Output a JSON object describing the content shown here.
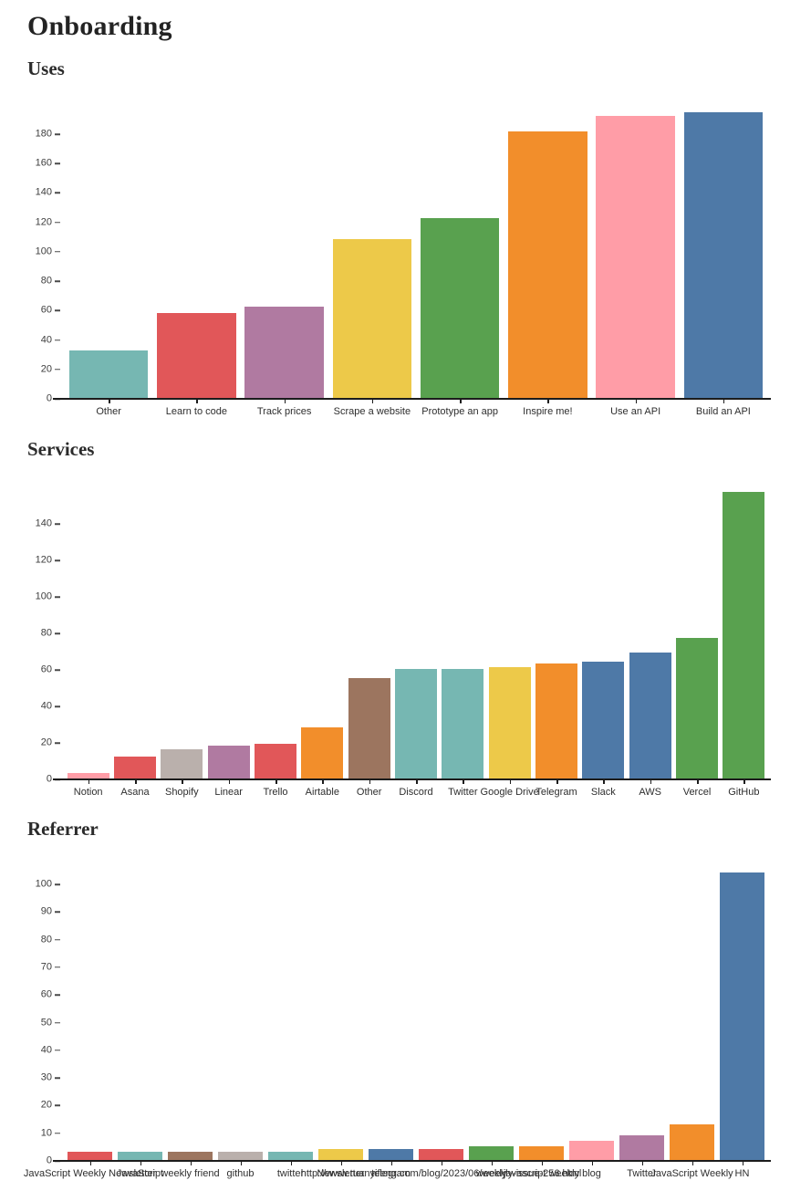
{
  "page": {
    "title": "Onboarding"
  },
  "palette": {
    "blue": "#4E79A7",
    "orange": "#F28E2B",
    "red": "#E15759",
    "teal": "#76B7B2",
    "green": "#59A14F",
    "yellow": "#EDC949",
    "purple": "#B07AA1",
    "pink": "#FF9DA7",
    "brown": "#9C755F",
    "gray": "#BAB0AC"
  },
  "chart_data": [
    {
      "type": "bar",
      "title": "Uses",
      "categories": [
        "Other",
        "Learn to code",
        "Track prices",
        "Scrape a website",
        "Prototype an app",
        "Inspire me!",
        "Use an API",
        "Build an API"
      ],
      "values": [
        32,
        58,
        62,
        108,
        122,
        181,
        192,
        194
      ],
      "colors": [
        "teal",
        "red",
        "purple",
        "yellow",
        "green",
        "orange",
        "pink",
        "blue"
      ],
      "y_ticks": [
        0,
        20,
        40,
        60,
        80,
        100,
        120,
        140,
        160,
        180
      ],
      "ylim": [
        0,
        195
      ],
      "xlabel": "",
      "ylabel": "",
      "grid": false,
      "legend": "none"
    },
    {
      "type": "bar",
      "title": "Services",
      "categories": [
        "Notion",
        "Asana",
        "Shopify",
        "Linear",
        "Trello",
        "Airtable",
        "Other",
        "Discord",
        "Twitter",
        "Google Drive",
        "Telegram",
        "Slack",
        "AWS",
        "Vercel",
        "GitHub"
      ],
      "values": [
        3,
        12,
        16,
        18,
        19,
        28,
        55,
        60,
        60,
        61,
        63,
        64,
        69,
        77,
        157
      ],
      "colors": [
        "pink",
        "red",
        "gray",
        "purple",
        "red",
        "orange",
        "brown",
        "teal",
        "teal",
        "yellow",
        "orange",
        "blue",
        "blue",
        "green",
        "green"
      ],
      "y_ticks": [
        0,
        20,
        40,
        60,
        80,
        100,
        120,
        140
      ],
      "ylim": [
        0,
        160
      ],
      "xlabel": "",
      "ylabel": "",
      "grid": false,
      "legend": "none"
    },
    {
      "type": "bar",
      "title": "Referrer",
      "categories": [
        "JavaScript Weekly Newsletter",
        "JavaScript",
        "weekly friend",
        "github",
        "twitter",
        "Newsletter",
        "telegram",
        "http://www.ruanyifeng.com/blog/2023/06/weekly-issue-256.html",
        "weekly",
        "javascript weekly",
        "blog",
        "Twitter",
        "JavaScript Weekly",
        "HN"
      ],
      "values": [
        3,
        3,
        3,
        3,
        3,
        4,
        4,
        4,
        5,
        5,
        7,
        9,
        13,
        104
      ],
      "colors": [
        "red",
        "teal",
        "brown",
        "gray",
        "teal",
        "yellow",
        "blue",
        "red",
        "green",
        "orange",
        "pink",
        "purple",
        "orange",
        "blue"
      ],
      "y_ticks": [
        0,
        10,
        20,
        30,
        40,
        50,
        60,
        70,
        80,
        90,
        100
      ],
      "ylim": [
        0,
        105
      ],
      "xlabel": "",
      "ylabel": "",
      "grid": false,
      "legend": "none"
    }
  ]
}
